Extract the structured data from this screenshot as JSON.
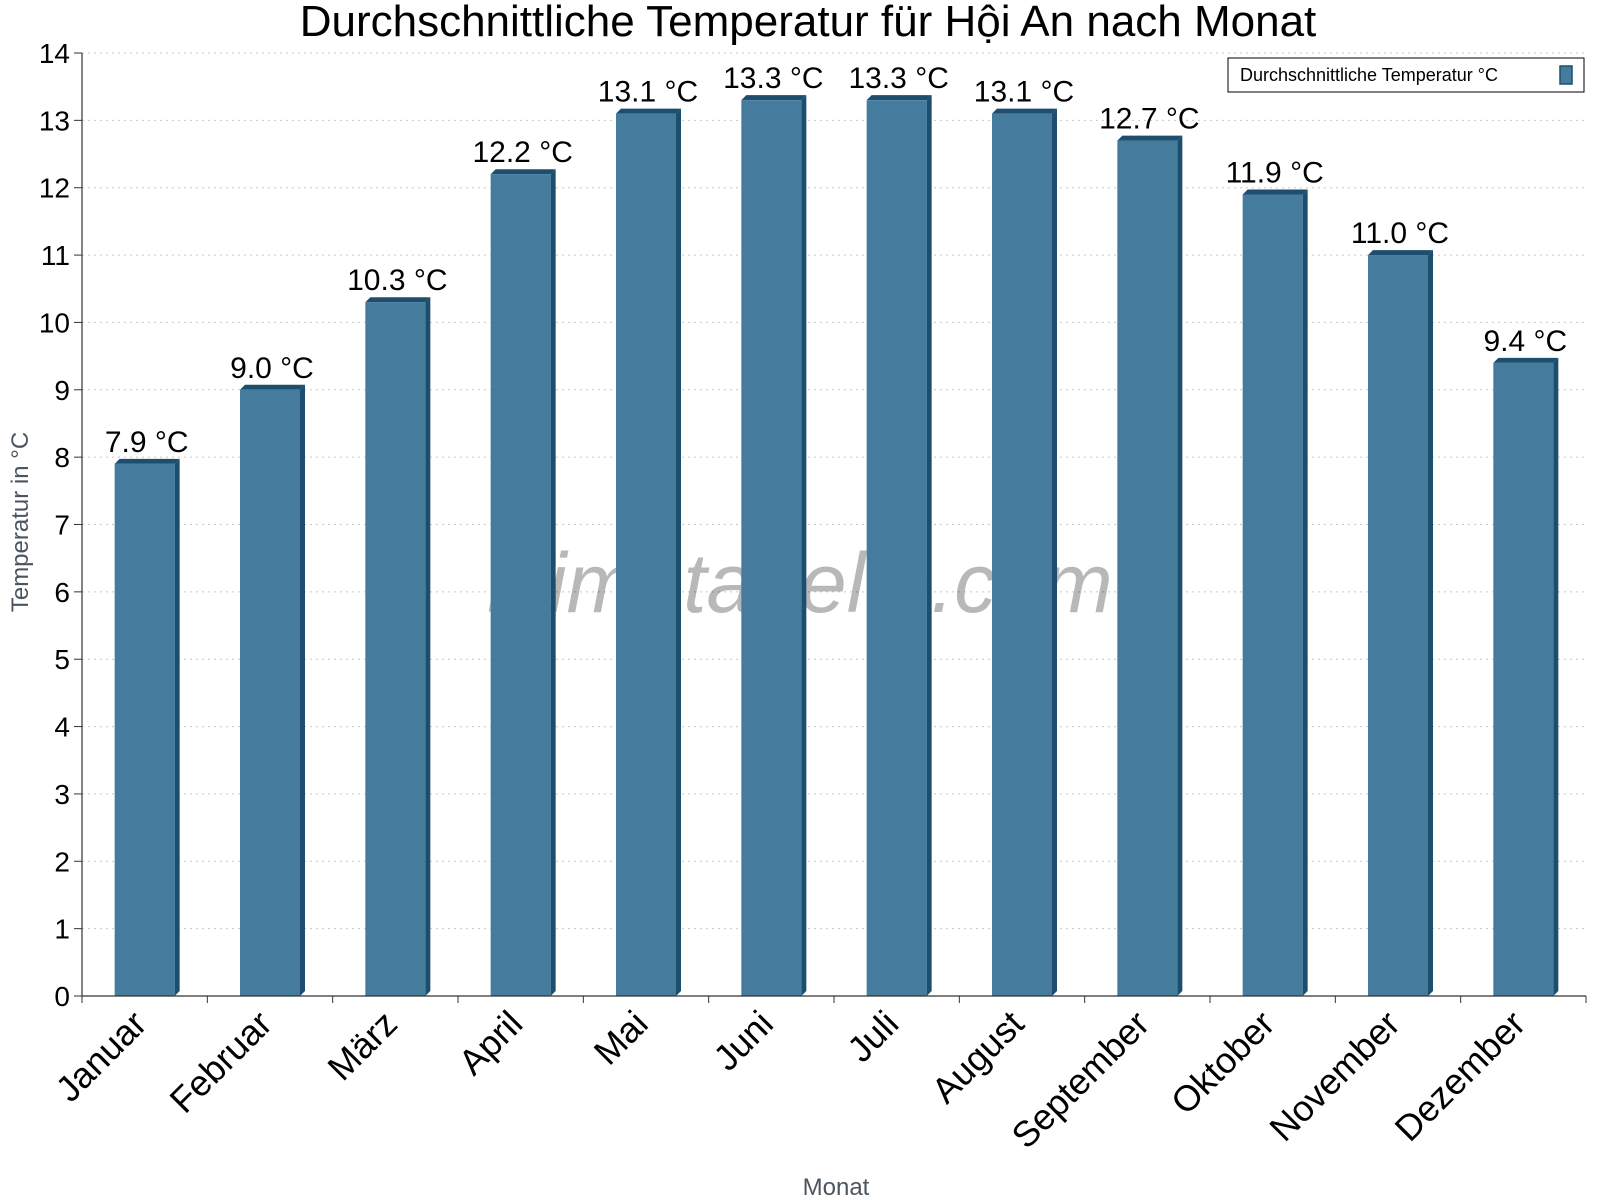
{
  "chart_data": {
    "type": "bar",
    "title": "Durchschnittliche Temperatur für Hội An nach Monat",
    "xlabel": "Monat",
    "ylabel": "Temperatur in °C",
    "ylim": [
      0,
      14
    ],
    "yticks": [
      0,
      1,
      2,
      3,
      4,
      5,
      6,
      7,
      8,
      9,
      10,
      11,
      12,
      13,
      14
    ],
    "grid": true,
    "legend_position": "top-right",
    "categories": [
      "Januar",
      "Februar",
      "März",
      "April",
      "Mai",
      "Juni",
      "Juli",
      "August",
      "September",
      "Oktober",
      "November",
      "Dezember"
    ],
    "series": [
      {
        "name": "Durchschnittliche Temperatur °C",
        "values": [
          7.9,
          9.0,
          10.3,
          12.2,
          13.1,
          13.3,
          13.3,
          13.1,
          12.7,
          11.9,
          11.0,
          9.4
        ],
        "labels": [
          "7.9 °C",
          "9.0 °C",
          "10.3 °C",
          "12.2 °C",
          "13.1 °C",
          "13.3 °C",
          "13.3 °C",
          "13.1 °C",
          "12.7 °C",
          "11.9 °C",
          "11.0 °C",
          "9.4 °C"
        ],
        "color": "#457b9d",
        "edge_color": "#1d4e6e"
      }
    ]
  },
  "watermark": "klimatabelle.com"
}
